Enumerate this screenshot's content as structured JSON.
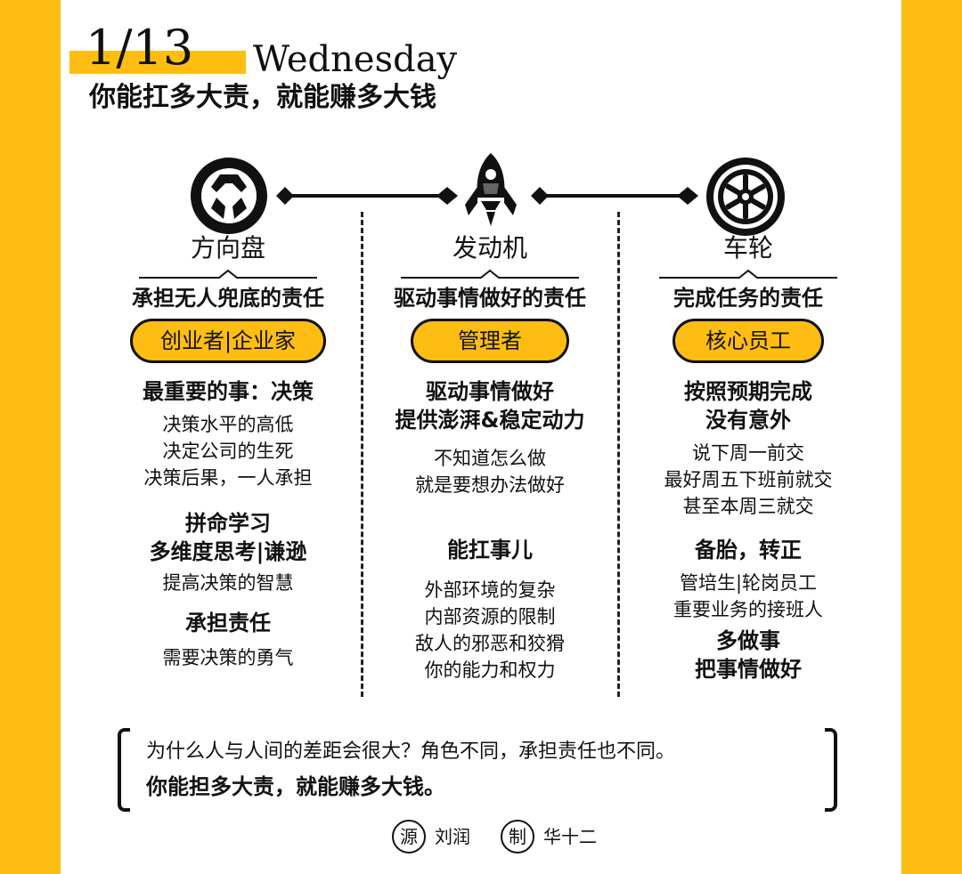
{
  "header": {
    "date": "1/13",
    "weekday": "Wednesday",
    "headline": "你能扛多大责，就能赚多大钱"
  },
  "colors": {
    "accent": "#fdbd12",
    "text": "#111111",
    "card": "#ffffff"
  },
  "columns": [
    {
      "icon": "steering-wheel-icon",
      "title": "方向盘",
      "responsibility": "承担无人兜底的责任",
      "role": "创业者|企业家",
      "sections": [
        {
          "title": "最重要的事：决策",
          "lines": [
            "决策水平的高低",
            "决定公司的生死",
            "决策后果，一人承担"
          ]
        },
        {
          "title_lines": [
            "拼命学习",
            "多维度思考|谦逊"
          ],
          "lines": [
            "提高决策的智慧"
          ]
        },
        {
          "title": "承担责任",
          "lines": [
            "需要决策的勇气"
          ]
        }
      ]
    },
    {
      "icon": "rocket-engine-icon",
      "title": "发动机",
      "responsibility": "驱动事情做好的责任",
      "role": "管理者",
      "sections": [
        {
          "title_lines": [
            "驱动事情做好",
            "提供澎湃&稳定动力"
          ],
          "lines": [
            "不知道怎么做",
            "就是要想办法做好"
          ]
        },
        {
          "title": "能扛事儿",
          "lines": [
            "外部环境的复杂",
            "内部资源的限制",
            "敌人的邪恶和狡猾",
            "你的能力和权力"
          ]
        }
      ]
    },
    {
      "icon": "wheel-icon",
      "title": "车轮",
      "responsibility": "完成任务的责任",
      "role": "核心员工",
      "sections": [
        {
          "title_lines": [
            "按照预期完成",
            "没有意外"
          ],
          "lines": [
            "说下周一前交",
            "最好周五下班前就交",
            "甚至本周三就交"
          ]
        },
        {
          "title": "备胎，转正",
          "lines": [
            "管培生|轮岗员工",
            "重要业务的接班人"
          ]
        },
        {
          "title_lines": [
            "多做事",
            "把事情做好"
          ],
          "lines": []
        }
      ]
    }
  ],
  "quote": {
    "line1": "为什么人与人间的差距会很大？角色不同，承担责任也不同。",
    "line2": "你能担多大责，就能赚多大钱。"
  },
  "credits": [
    {
      "badge": "源",
      "name": "刘润"
    },
    {
      "badge": "制",
      "name": "华十二"
    }
  ]
}
